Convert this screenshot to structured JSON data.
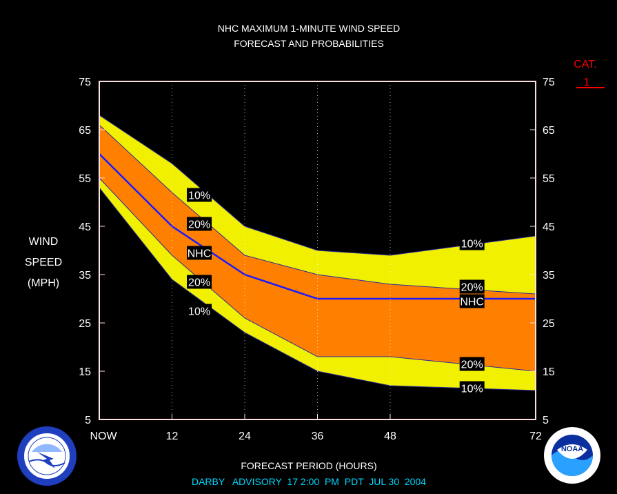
{
  "chart_data": {
    "type": "area",
    "title": "NHC MAXIMUM 1-MINUTE WIND SPEED",
    "subtitle": "FORECAST AND PROBABILITIES",
    "xlabel": "FORECAST PERIOD (HOURS)",
    "ylabel_lines": [
      "WIND",
      "SPEED",
      "(MPH)"
    ],
    "x": [
      0,
      12,
      24,
      36,
      48,
      72
    ],
    "x_tick_labels": [
      "NOW",
      "12",
      "24",
      "36",
      "48",
      "72"
    ],
    "xlim": [
      0,
      72
    ],
    "ylim": [
      5,
      75
    ],
    "y_ticks": [
      5,
      15,
      25,
      35,
      45,
      55,
      65,
      75
    ],
    "grid_x": true,
    "series": [
      {
        "name": "10%",
        "values": [
          68,
          58,
          45,
          40,
          39,
          43
        ]
      },
      {
        "name": "20%",
        "values": [
          66,
          52,
          39,
          35,
          33,
          31
        ]
      },
      {
        "name": "NHC",
        "values": [
          60,
          45,
          35,
          30,
          30,
          30
        ]
      },
      {
        "name": "20%",
        "values": [
          55,
          39,
          26,
          18,
          18,
          15
        ]
      },
      {
        "name": "10%",
        "values": [
          53,
          34,
          23,
          15,
          12,
          11
        ]
      }
    ],
    "colors": {
      "outer_band": "#f0f000",
      "inner_band": "#ff8000",
      "nhc_line": "#1a1aff",
      "band_edge": "#2a2aa0",
      "background": "#000000",
      "frame": "#ffe0e0",
      "category": "#ff0000",
      "advisory": "#00d8ff"
    },
    "category": {
      "label": "CAT.",
      "value": "1",
      "threshold_mph": 74
    },
    "labels": [
      {
        "text": "10%",
        "x": 16.5,
        "y": 51.5
      },
      {
        "text": "20%",
        "x": 16.5,
        "y": 45.5
      },
      {
        "text": "NHC",
        "x": 16.5,
        "y": 39.5
      },
      {
        "text": "20%",
        "x": 16.5,
        "y": 33.5
      },
      {
        "text": "10%",
        "x": 16.5,
        "y": 27.5
      },
      {
        "text": "10%",
        "x": 61.5,
        "y": 41.5
      },
      {
        "text": "20%",
        "x": 61.5,
        "y": 32.5
      },
      {
        "text": "NHC",
        "x": 61.5,
        "y": 29.5
      },
      {
        "text": "20%",
        "x": 61.5,
        "y": 16.5
      },
      {
        "text": "10%",
        "x": 61.5,
        "y": 11.5
      }
    ]
  },
  "footer": {
    "advisory": "DARBY   ADVISORY  17 2:00  PM  PDT  JUL 30  2004"
  },
  "logos": {
    "left": "nws-logo",
    "right": "noaa-logo",
    "right_text": "NOAA"
  }
}
